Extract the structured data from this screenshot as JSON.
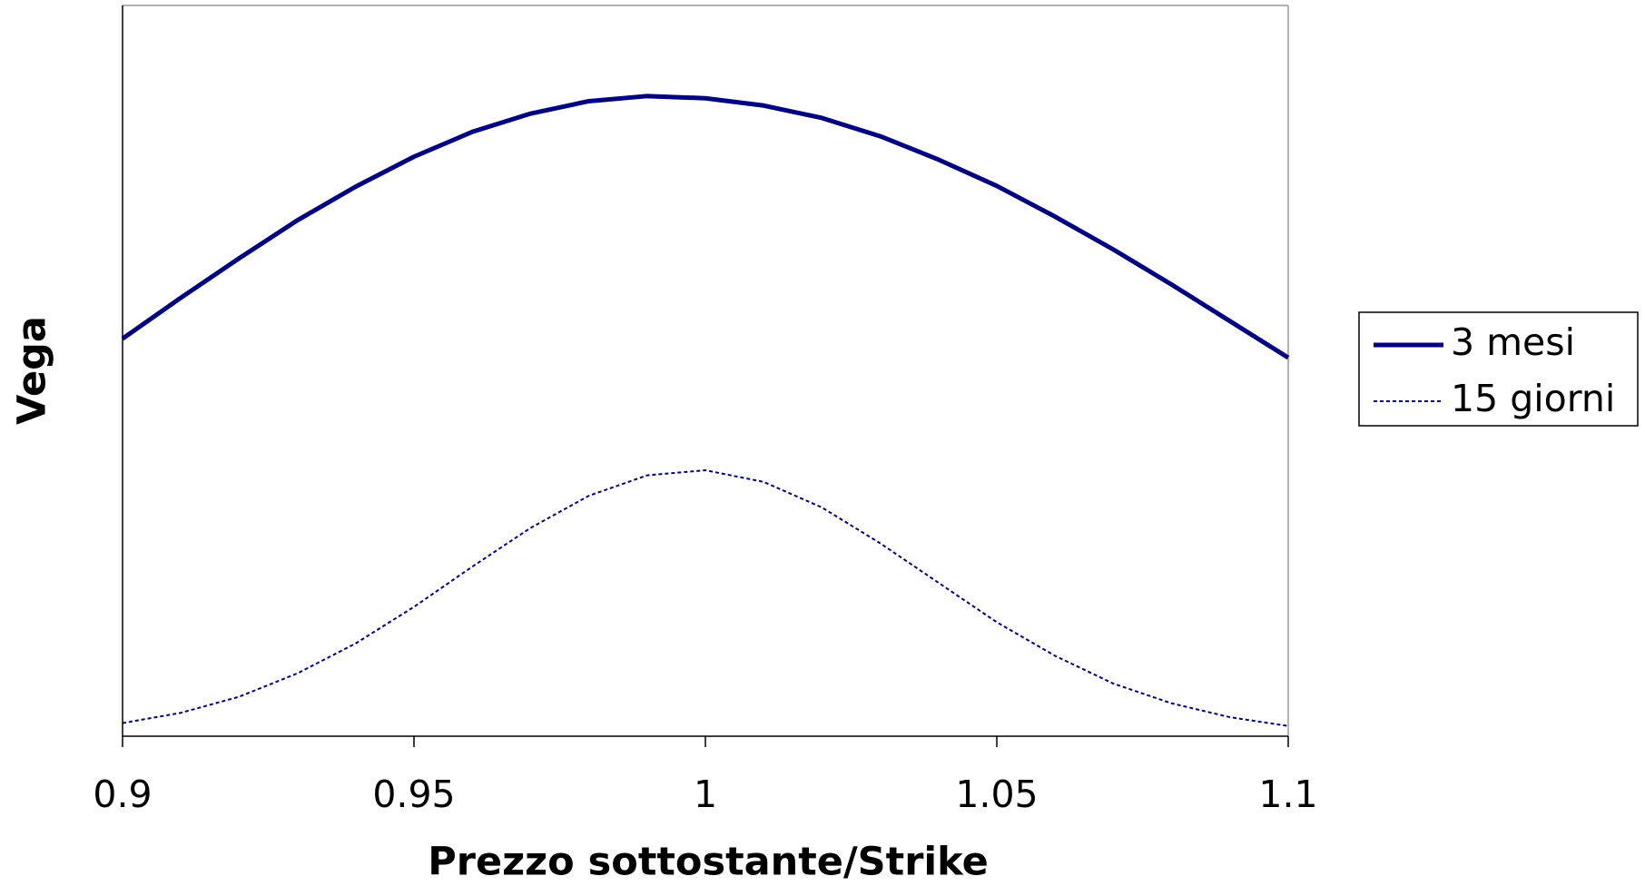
{
  "chart_data": {
    "type": "line",
    "x_label": "Prezzo sottostante/Strike",
    "y_label": "Vega",
    "x": [
      0.9,
      0.91,
      0.92,
      0.93,
      0.94,
      0.95,
      0.96,
      0.97,
      0.98,
      0.99,
      1.0,
      1.01,
      1.02,
      1.03,
      1.04,
      1.05,
      1.06,
      1.07,
      1.08,
      1.09,
      1.1
    ],
    "series": [
      {
        "name": "3 mesi",
        "color": "#000080",
        "style": "solid",
        "values": [
          0.544,
          0.6,
          0.654,
          0.706,
          0.752,
          0.793,
          0.827,
          0.852,
          0.869,
          0.876,
          0.873,
          0.863,
          0.846,
          0.821,
          0.789,
          0.753,
          0.711,
          0.666,
          0.618,
          0.568,
          0.518
        ]
      },
      {
        "name": "15 giorni",
        "color": "#000080",
        "style": "dotted",
        "values": [
          0.018,
          0.032,
          0.054,
          0.086,
          0.127,
          0.177,
          0.232,
          0.285,
          0.329,
          0.357,
          0.364,
          0.348,
          0.313,
          0.264,
          0.21,
          0.156,
          0.11,
          0.072,
          0.045,
          0.026,
          0.014
        ]
      }
    ],
    "xlim": [
      0.9,
      1.1
    ],
    "xticks": [
      0.9,
      0.95,
      1,
      1.05,
      1.1
    ],
    "ylim": [
      0,
      1
    ],
    "legend": "right"
  }
}
